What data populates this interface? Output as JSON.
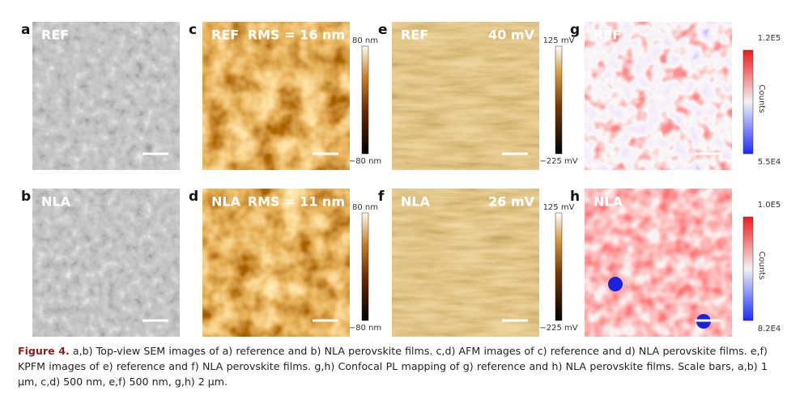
{
  "panels": [
    {
      "letter": "a",
      "label": "REF"
    },
    {
      "letter": "b",
      "label": "NLA"
    },
    {
      "letter": "c",
      "label": "REF",
      "note": "RMS = 16 nm",
      "colorbar": {
        "max": "80 nm",
        "min": "−80 nm"
      }
    },
    {
      "letter": "d",
      "label": "NLA",
      "note": "RMS = 11 nm",
      "colorbar": {
        "max": "80 nm",
        "min": "−80 nm"
      }
    },
    {
      "letter": "e",
      "label": "REF",
      "note": "40 mV",
      "colorbar": {
        "max": "125 mV",
        "min": "−225 mV"
      }
    },
    {
      "letter": "f",
      "label": "NLA",
      "note": "26 mV",
      "colorbar": {
        "max": "125 mV",
        "min": "−225 mV"
      }
    },
    {
      "letter": "g",
      "label": "REF",
      "colorbar": {
        "max": "1.2E5",
        "min": "5.5E4",
        "title": "Counts"
      }
    },
    {
      "letter": "h",
      "label": "NLA",
      "colorbar": {
        "max": "1.0E5",
        "min": "8.2E4",
        "title": "Counts"
      }
    }
  ],
  "caption": {
    "label": "Figure 4.",
    "text": "a,b) Top-view SEM images of a) reference and b) NLA perovskite films. c,d) AFM images of c) reference and d) NLA perovskite films. e,f) KPFM images of e) reference and f) NLA perovskite films. g,h) Confocal PL mapping of g) reference and h) NLA perovskite films. Scale bars, a,b) 1 µm, c,d) 500 nm, e,f) 500 nm, g,h) 2 µm."
  }
}
